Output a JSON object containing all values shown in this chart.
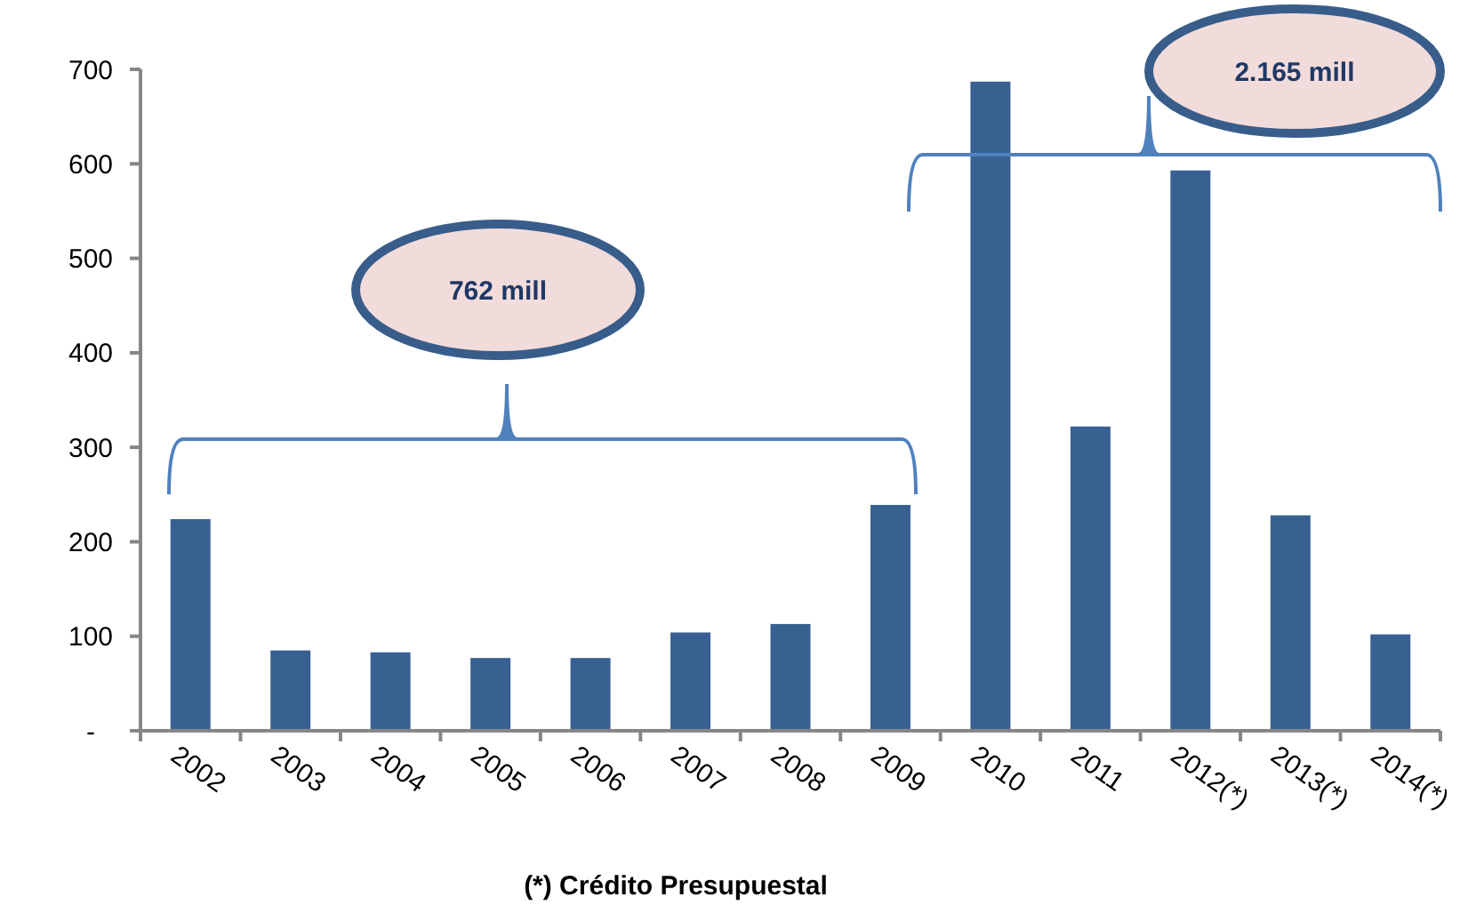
{
  "chart_data": {
    "type": "bar",
    "xlabel": "(*) Crédito Presupuestal",
    "categories": [
      "2002",
      "2003",
      "2004",
      "2005",
      "2006",
      "2007",
      "2008",
      "2009",
      "2010",
      "2011",
      "2012(*)",
      "2013(*)",
      "2014(*)"
    ],
    "values": [
      224,
      85,
      83,
      77,
      77,
      104,
      113,
      239,
      687,
      322,
      593,
      228,
      102
    ],
    "color": "#386192",
    "ylim": [
      0,
      700
    ],
    "yticks": [
      {
        "value": 0,
        "label": "-"
      },
      100,
      200,
      300,
      400,
      500,
      600,
      700
    ],
    "grid": false,
    "annotations": [
      "762 mill",
      "2.165 mill"
    ]
  }
}
